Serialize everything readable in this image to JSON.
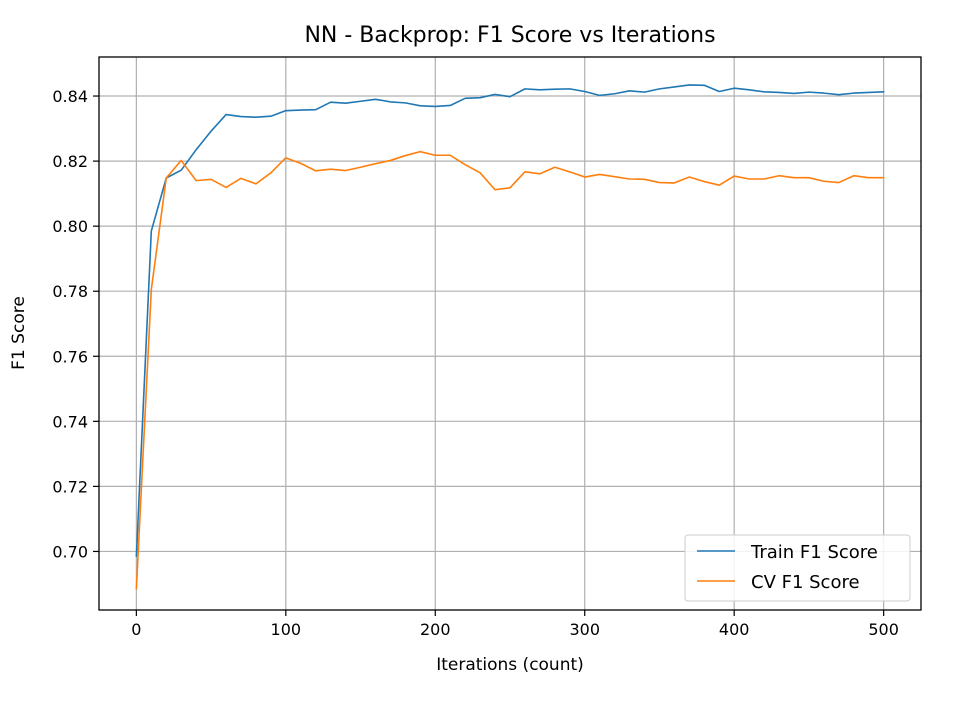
{
  "chart_data": {
    "type": "line",
    "title": "NN - Backprop: F1 Score vs Iterations",
    "xlabel": "Iterations (count)",
    "ylabel": "F1 Score",
    "xlim": [
      -25,
      525
    ],
    "ylim": [
      0.682,
      0.852
    ],
    "xticks": [
      0,
      100,
      200,
      300,
      400,
      500
    ],
    "yticks": [
      0.7,
      0.72,
      0.74,
      0.76,
      0.78,
      0.8,
      0.82,
      0.84
    ],
    "xtick_labels": [
      "0",
      "100",
      "200",
      "300",
      "400",
      "500"
    ],
    "ytick_labels": [
      "0.70",
      "0.72",
      "0.74",
      "0.76",
      "0.78",
      "0.80",
      "0.82",
      "0.84"
    ],
    "grid": true,
    "legend_position": "lower-right",
    "x": [
      0,
      10,
      20,
      30,
      40,
      50,
      60,
      70,
      80,
      90,
      100,
      110,
      120,
      130,
      140,
      150,
      160,
      170,
      180,
      190,
      200,
      210,
      220,
      230,
      240,
      250,
      260,
      270,
      280,
      290,
      300,
      310,
      320,
      330,
      340,
      350,
      360,
      370,
      380,
      390,
      400,
      410,
      420,
      430,
      440,
      450,
      460,
      470,
      480,
      490,
      500
    ],
    "series": [
      {
        "name": "Train F1 Score",
        "color": "#1f77b4",
        "values": [
          0.6985,
          0.7985,
          0.8148,
          0.8172,
          0.8235,
          0.8292,
          0.8343,
          0.8337,
          0.8335,
          0.8338,
          0.8355,
          0.8357,
          0.8358,
          0.8381,
          0.8378,
          0.8384,
          0.839,
          0.8382,
          0.8379,
          0.837,
          0.8368,
          0.8371,
          0.8393,
          0.8395,
          0.8405,
          0.8398,
          0.8422,
          0.8419,
          0.8421,
          0.8422,
          0.8414,
          0.8402,
          0.8407,
          0.8416,
          0.8412,
          0.8422,
          0.8428,
          0.8434,
          0.8433,
          0.8414,
          0.8424,
          0.8419,
          0.8413,
          0.8411,
          0.8408,
          0.8412,
          0.8409,
          0.8404,
          0.8409,
          0.8411,
          0.8413
        ]
      },
      {
        "name": "CV F1 Score",
        "color": "#ff7f0e",
        "values": [
          0.6885,
          0.7805,
          0.8148,
          0.8202,
          0.814,
          0.8144,
          0.8119,
          0.8147,
          0.813,
          0.8164,
          0.821,
          0.8193,
          0.817,
          0.8175,
          0.8171,
          0.8181,
          0.8192,
          0.8202,
          0.8217,
          0.8229,
          0.8218,
          0.8218,
          0.8189,
          0.8164,
          0.8112,
          0.8118,
          0.8167,
          0.8161,
          0.8181,
          0.8167,
          0.8151,
          0.8159,
          0.8152,
          0.8145,
          0.8144,
          0.8134,
          0.8133,
          0.8151,
          0.8137,
          0.8126,
          0.8154,
          0.8145,
          0.8145,
          0.8155,
          0.8149,
          0.8149,
          0.8138,
          0.8134,
          0.8155,
          0.8149,
          0.8149
        ]
      }
    ]
  }
}
